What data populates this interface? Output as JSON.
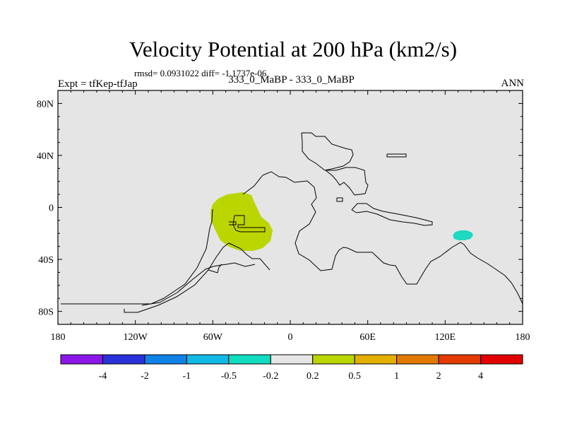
{
  "header": {
    "title": "Velocity Potential at 200 hPa (km2/s)",
    "stats": "rmsd= 0.0931022 diff= -1.1737e-06",
    "left": "Expt = tfKep-tfJap",
    "center": "333_0_MaBP - 333_0_MaBP",
    "right": "ANN"
  },
  "chart_data": {
    "type": "heatmap",
    "title": "Velocity Potential at 200 hPa (km2/s)",
    "xlabel": "",
    "ylabel": "",
    "xlim": [
      -180,
      180
    ],
    "ylim": [
      -90,
      90
    ],
    "x_ticks": [
      {
        "value": -180,
        "label": "180"
      },
      {
        "value": -120,
        "label": "120W"
      },
      {
        "value": -60,
        "label": "60W"
      },
      {
        "value": 0,
        "label": "0"
      },
      {
        "value": 60,
        "label": "60E"
      },
      {
        "value": 120,
        "label": "120E"
      },
      {
        "value": 180,
        "label": "180"
      }
    ],
    "y_ticks": [
      {
        "value": 80,
        "label": "80N"
      },
      {
        "value": 40,
        "label": "40N"
      },
      {
        "value": 0,
        "label": "0"
      },
      {
        "value": -40,
        "label": "40S"
      },
      {
        "value": -80,
        "label": "80S"
      }
    ],
    "background_color": "#e5e5e5",
    "regions": [
      {
        "name": "positive anomaly (0.2 to 0.5)",
        "color": "#bbd500",
        "center_lon": -40,
        "center_lat": -3,
        "lon_extent": [
          -62,
          -14
        ],
        "lat_extent": [
          -33,
          12
        ]
      },
      {
        "name": "negative anomaly (-0.5 to -0.2)",
        "color": "#1cd9c0",
        "center_lon": 136,
        "center_lat": -20,
        "lon_extent": [
          128,
          143
        ],
        "lat_extent": [
          -24,
          -17
        ]
      }
    ],
    "colorbar": {
      "levels": [
        "-4",
        "-2",
        "-1",
        "-0.5",
        "-0.2",
        "0.2",
        "0.5",
        "1",
        "2",
        "4"
      ],
      "colors": [
        "#8b16e8",
        "#2a32d9",
        "#0e82e6",
        "#11b9e6",
        "#11dcbf",
        "#e6e6e6",
        "#bbd500",
        "#e3b000",
        "#e37a00",
        "#e33b00",
        "#e30000"
      ]
    }
  }
}
